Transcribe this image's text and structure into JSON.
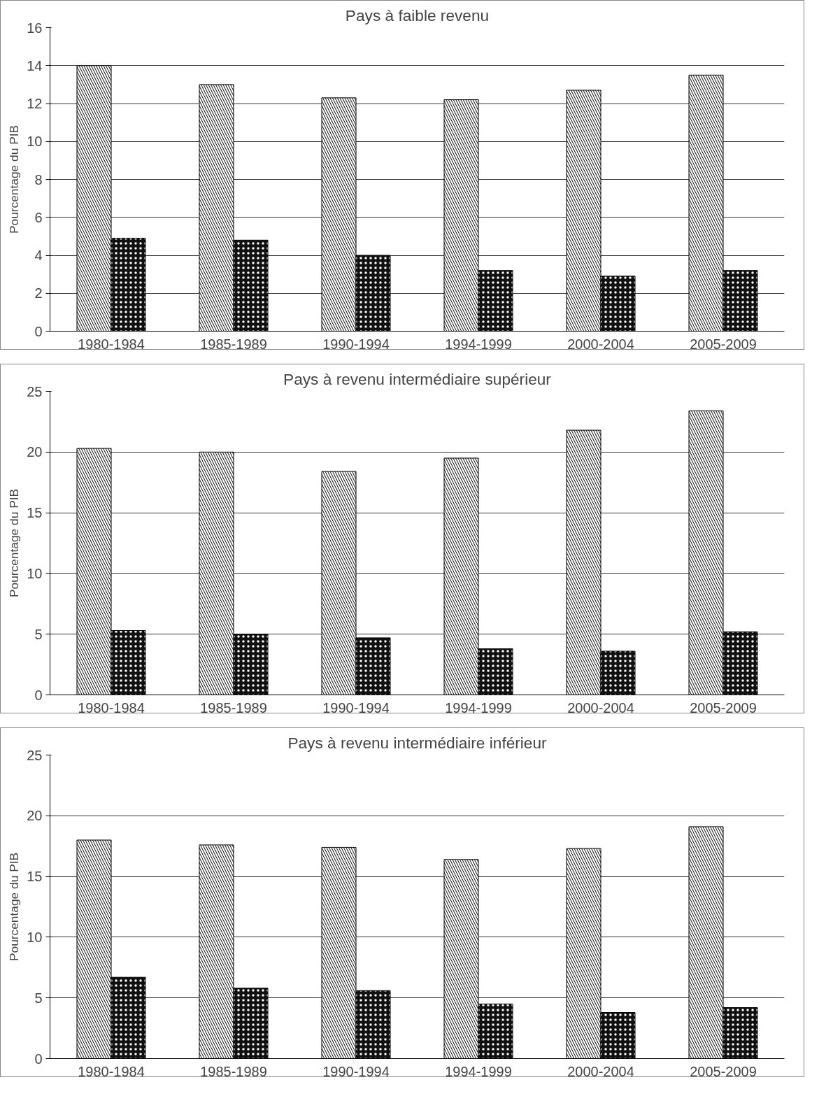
{
  "chart_data": [
    {
      "type": "bar",
      "title": "Pays à faible revenu",
      "ylabel": "Pourcentage du PIB",
      "categories": [
        "1980-1984",
        "1985-1989",
        "1990-1994",
        "1994-1999",
        "2000-2004",
        "2005-2009"
      ],
      "series": [
        {
          "color": "#ffffff",
          "values": [
            14.0,
            13.0,
            12.3,
            12.2,
            12.7,
            13.5
          ]
        },
        {
          "color": "#111111",
          "values": [
            4.9,
            4.8,
            4.0,
            3.2,
            2.9,
            3.2
          ]
        }
      ],
      "ylim": [
        0,
        16
      ],
      "yticks": [
        0,
        2,
        4,
        6,
        8,
        10,
        12,
        14,
        16
      ],
      "grid": "y"
    },
    {
      "type": "bar",
      "title": "Pays à revenu intermédiaire supérieur",
      "ylabel": "Pourcentage du PIB",
      "categories": [
        "1980-1984",
        "1985-1989",
        "1990-1994",
        "1994-1999",
        "2000-2004",
        "2005-2009"
      ],
      "series": [
        {
          "color": "#ffffff",
          "values": [
            20.3,
            20.0,
            18.4,
            19.5,
            21.8,
            23.4
          ]
        },
        {
          "color": "#111111",
          "values": [
            5.3,
            5.0,
            4.7,
            3.8,
            3.6,
            5.2
          ]
        }
      ],
      "ylim": [
        0,
        25
      ],
      "yticks": [
        0,
        5,
        10,
        15,
        20,
        25
      ],
      "grid": "y"
    },
    {
      "type": "bar",
      "title": "Pays à revenu intermédiaire inférieur",
      "ylabel": "Pourcentage du PIB",
      "categories": [
        "1980-1984",
        "1985-1989",
        "1990-1994",
        "1994-1999",
        "2000-2004",
        "2005-2009"
      ],
      "series": [
        {
          "color": "#ffffff",
          "values": [
            18.0,
            17.6,
            17.4,
            16.4,
            17.3,
            19.1
          ]
        },
        {
          "color": "#111111",
          "values": [
            6.7,
            5.8,
            5.6,
            4.5,
            3.8,
            4.2
          ]
        }
      ],
      "ylim": [
        0,
        25
      ],
      "yticks": [
        0,
        5,
        10,
        15,
        20,
        25
      ],
      "grid": "y"
    }
  ]
}
